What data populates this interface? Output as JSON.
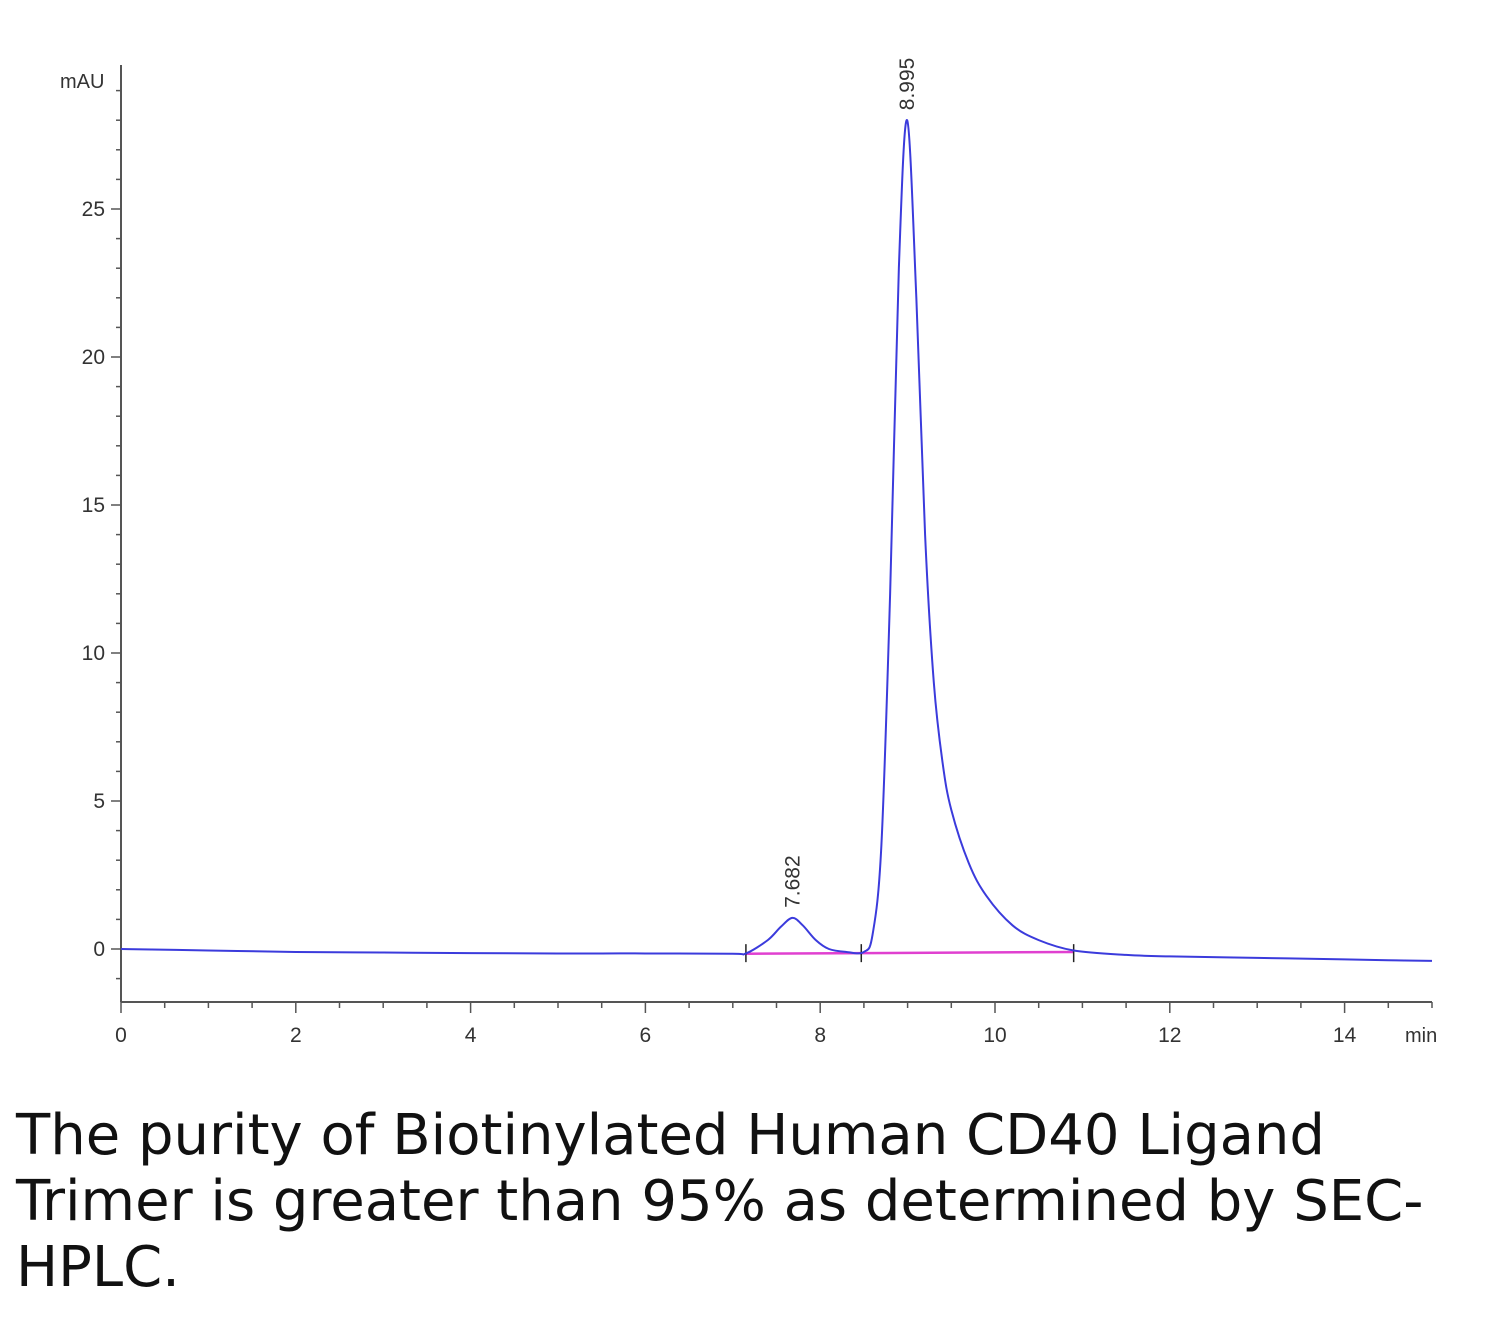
{
  "chart_data": {
    "type": "line",
    "y_unit_label": "mAU",
    "x_unit_label": "min",
    "xlim": [
      0,
      15
    ],
    "ylim": [
      -1.8,
      29.5
    ],
    "x_ticks": [
      0,
      2,
      4,
      6,
      8,
      10,
      12,
      14
    ],
    "y_ticks": [
      0,
      5,
      10,
      15,
      20,
      25
    ],
    "grid": false,
    "legend": "none",
    "series": [
      {
        "color": "#3b3bdc",
        "x": [
          0,
          1,
          2,
          3,
          4,
          5,
          6,
          7,
          7.15,
          7.4,
          7.55,
          7.682,
          7.8,
          7.95,
          8.1,
          8.3,
          8.5,
          8.6,
          8.7,
          8.8,
          8.9,
          8.995,
          9.1,
          9.2,
          9.3,
          9.4,
          9.5,
          9.7,
          9.9,
          10.2,
          10.5,
          10.9,
          11.5,
          12,
          13,
          14,
          14.5,
          15
        ],
        "y": [
          0,
          -0.05,
          -0.1,
          -0.12,
          -0.14,
          -0.15,
          -0.15,
          -0.16,
          -0.15,
          0.3,
          0.75,
          1.05,
          0.8,
          0.3,
          0.0,
          -0.1,
          -0.1,
          0.5,
          3.5,
          12.0,
          23.0,
          28.0,
          22.0,
          14.0,
          9.0,
          6.3,
          4.7,
          2.9,
          1.8,
          0.8,
          0.3,
          -0.05,
          -0.2,
          -0.25,
          -0.3,
          -0.35,
          -0.38,
          -0.4
        ]
      }
    ],
    "baseline": {
      "color": "#e040d0",
      "x": [
        7.15,
        10.9
      ],
      "y": [
        -0.16,
        -0.1
      ]
    },
    "peak_labels": [
      {
        "x": 7.682,
        "y": 1.05,
        "text": "7.682"
      },
      {
        "x": 8.995,
        "y": 28.0,
        "text": "8.995"
      }
    ],
    "integration_marks": [
      7.15,
      8.47,
      10.9
    ]
  },
  "caption": "The purity of Biotinylated Human CD40 Ligand Trimer is greater than 95% as determined by SEC-HPLC."
}
